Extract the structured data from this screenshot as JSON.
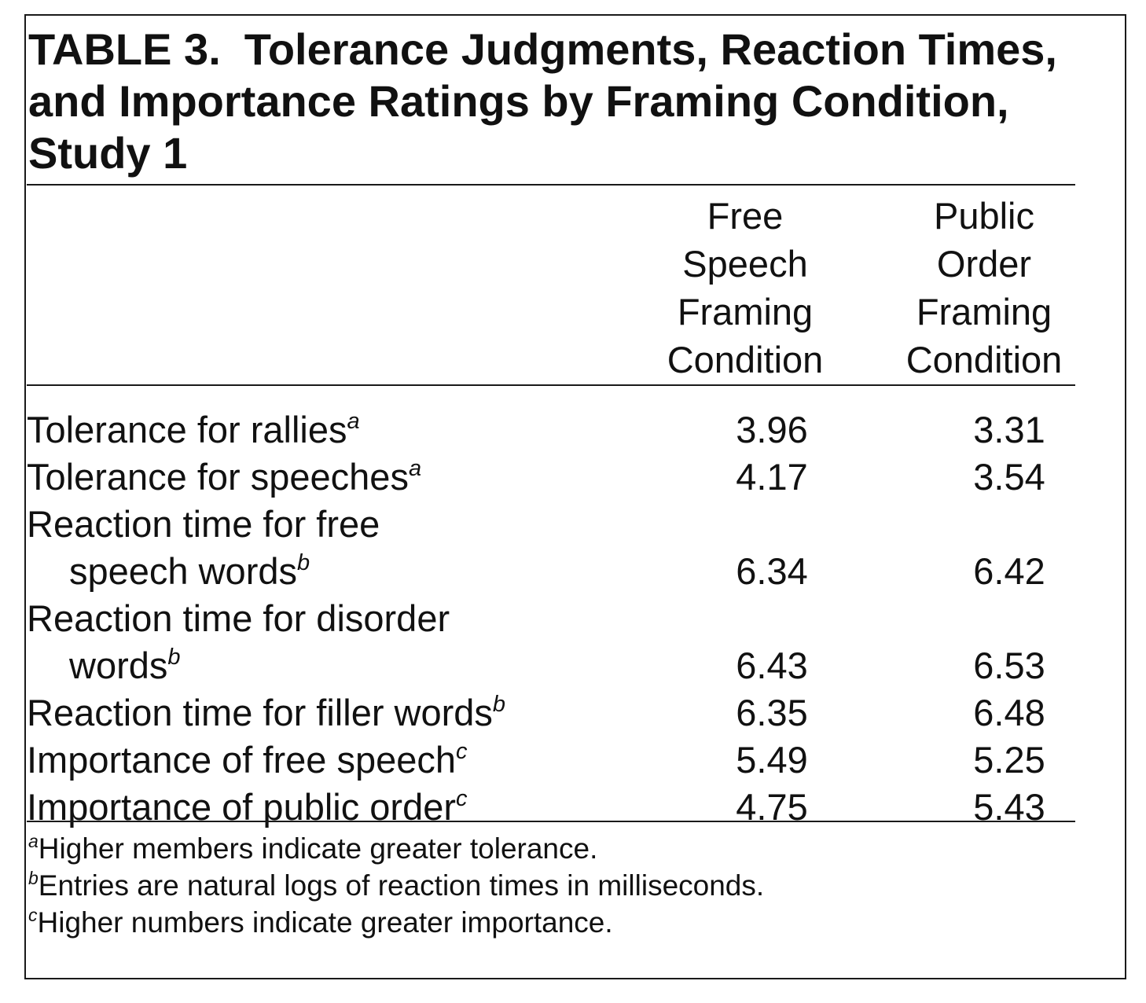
{
  "table": {
    "number": "TABLE 3.",
    "title": "Tolerance Judgments, Reaction Times, and Importance Ratings by Framing Condition, Study 1",
    "columns": [
      {
        "lines": [
          "Free",
          "Speech",
          "Framing",
          "Condition"
        ]
      },
      {
        "lines": [
          "Public",
          "Order",
          "Framing",
          "Condition"
        ]
      }
    ],
    "rows": [
      {
        "label": "Tolerance for rallies",
        "label_cont": "",
        "footnote": "a",
        "values": [
          "3.96",
          "3.31"
        ]
      },
      {
        "label": "Tolerance for speeches",
        "label_cont": "",
        "footnote": "a",
        "values": [
          "4.17",
          "3.54"
        ]
      },
      {
        "label": "Reaction time for free",
        "label_cont": "speech words",
        "footnote": "b",
        "values": [
          "6.34",
          "6.42"
        ]
      },
      {
        "label": "Reaction time for disorder",
        "label_cont": "words",
        "footnote": "b",
        "values": [
          "6.43",
          "6.53"
        ]
      },
      {
        "label": "Reaction time for filler words",
        "label_cont": "",
        "footnote": "b",
        "values": [
          "6.35",
          "6.48"
        ]
      },
      {
        "label": "Importance of free speech",
        "label_cont": "",
        "footnote": "c",
        "values": [
          "5.49",
          "5.25"
        ]
      },
      {
        "label": "Importance of public order",
        "label_cont": "",
        "footnote": "c",
        "values": [
          "4.75",
          "5.43"
        ]
      }
    ],
    "notes": [
      {
        "marker": "a",
        "text": "Higher members indicate greater tolerance."
      },
      {
        "marker": "b",
        "text": "Entries are natural logs of reaction times in milliseconds."
      },
      {
        "marker": "c",
        "text": "Higher numbers indicate greater importance."
      }
    ]
  }
}
